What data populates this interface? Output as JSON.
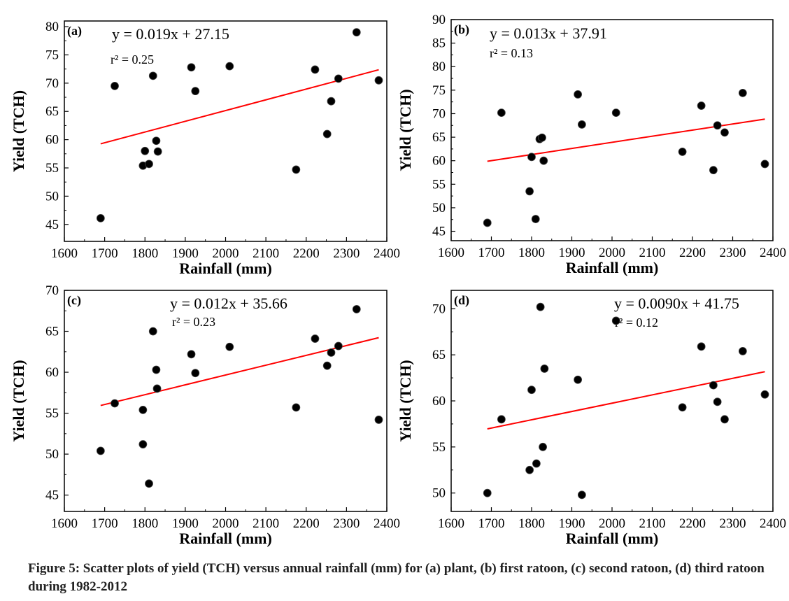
{
  "caption": "Figure 5: Scatter plots of yield (TCH) versus annual rainfall (mm) for (a) plant, (b) first ratoon, (c) second ratoon, (d) third ratoon during 1982-2012",
  "chart_data": [
    {
      "type": "scatter",
      "panel_label": "(a)",
      "equation": "y = 0.019x + 27.15",
      "r2_label": "r² = 0.25",
      "xlabel": "Rainfall (mm)",
      "ylabel": "Yield (TCH)",
      "xlim": [
        1600,
        2400
      ],
      "ylim": [
        42,
        81
      ],
      "xticks": [
        1600,
        1700,
        1800,
        1900,
        2000,
        2100,
        2200,
        2300,
        2400
      ],
      "yticks": [
        45,
        50,
        55,
        60,
        65,
        70,
        75,
        80
      ],
      "fit": {
        "slope": 0.019,
        "intercept": 27.15,
        "x_range": [
          1690,
          2380
        ],
        "color": "#ff0000"
      },
      "points": [
        [
          1690,
          46.1
        ],
        [
          1725,
          69.5
        ],
        [
          1795,
          55.4
        ],
        [
          1800,
          58.0
        ],
        [
          1810,
          55.7
        ],
        [
          1820,
          71.3
        ],
        [
          1828,
          59.8
        ],
        [
          1832,
          57.9
        ],
        [
          1915,
          72.8
        ],
        [
          1925,
          68.6
        ],
        [
          2010,
          73.0
        ],
        [
          2175,
          54.7
        ],
        [
          2222,
          72.4
        ],
        [
          2252,
          61.0
        ],
        [
          2262,
          66.8
        ],
        [
          2280,
          70.8
        ],
        [
          2325,
          79.0
        ],
        [
          2380,
          70.5
        ]
      ]
    },
    {
      "type": "scatter",
      "panel_label": "(b)",
      "equation": "y = 0.013x + 37.91",
      "r2_label": "r² = 0.13",
      "xlabel": "Rainfall (mm)",
      "ylabel": "Yield (TCH)",
      "xlim": [
        1600,
        2400
      ],
      "ylim": [
        43,
        90
      ],
      "xticks": [
        1600,
        1700,
        1800,
        1900,
        2000,
        2100,
        2200,
        2300,
        2400
      ],
      "yticks": [
        45,
        50,
        55,
        60,
        65,
        70,
        75,
        80,
        85,
        90
      ],
      "fit": {
        "slope": 0.013,
        "intercept": 37.91,
        "x_range": [
          1690,
          2380
        ],
        "color": "#ff0000"
      },
      "points": [
        [
          1690,
          46.8
        ],
        [
          1725,
          70.2
        ],
        [
          1795,
          53.5
        ],
        [
          1800,
          60.8
        ],
        [
          1810,
          47.6
        ],
        [
          1820,
          64.6
        ],
        [
          1826,
          64.9
        ],
        [
          1830,
          60.0
        ],
        [
          1915,
          74.1
        ],
        [
          1925,
          67.7
        ],
        [
          2010,
          70.2
        ],
        [
          2175,
          61.9
        ],
        [
          2222,
          71.7
        ],
        [
          2252,
          58.0
        ],
        [
          2262,
          67.5
        ],
        [
          2280,
          66.0
        ],
        [
          2325,
          74.4
        ],
        [
          2380,
          59.3
        ]
      ]
    },
    {
      "type": "scatter",
      "panel_label": "(c)",
      "equation": "y = 0.012x + 35.66",
      "r2_label": "r² = 0.23",
      "xlabel": "Rainfall (mm)",
      "ylabel": "Yield (TCH)",
      "xlim": [
        1600,
        2400
      ],
      "ylim": [
        43,
        70
      ],
      "xticks": [
        1600,
        1700,
        1800,
        1900,
        2000,
        2100,
        2200,
        2300,
        2400
      ],
      "yticks": [
        45,
        50,
        55,
        60,
        65,
        70
      ],
      "fit": {
        "slope": 0.012,
        "intercept": 35.66,
        "x_range": [
          1690,
          2380
        ],
        "color": "#ff0000"
      },
      "points": [
        [
          1690,
          50.4
        ],
        [
          1725,
          56.2
        ],
        [
          1795,
          55.4
        ],
        [
          1795,
          51.2
        ],
        [
          1810,
          46.4
        ],
        [
          1820,
          65.0
        ],
        [
          1828,
          60.3
        ],
        [
          1830,
          58.0
        ],
        [
          1915,
          62.2
        ],
        [
          1925,
          59.9
        ],
        [
          2010,
          63.1
        ],
        [
          2175,
          55.7
        ],
        [
          2222,
          64.1
        ],
        [
          2252,
          60.8
        ],
        [
          2262,
          62.4
        ],
        [
          2280,
          63.2
        ],
        [
          2325,
          67.7
        ],
        [
          2380,
          54.2
        ]
      ]
    },
    {
      "type": "scatter",
      "panel_label": "(d)",
      "equation": "y = 0.0090x + 41.75",
      "r2_label": "r² = 0.12",
      "xlabel": "Rainfall (mm)",
      "ylabel": "Yield (TCH)",
      "xlim": [
        1600,
        2400
      ],
      "ylim": [
        48,
        72
      ],
      "xticks": [
        1600,
        1700,
        1800,
        1900,
        2000,
        2100,
        2200,
        2300,
        2400
      ],
      "yticks": [
        50,
        55,
        60,
        65,
        70
      ],
      "fit": {
        "slope": 0.009,
        "intercept": 41.75,
        "x_range": [
          1690,
          2380
        ],
        "color": "#ff0000"
      },
      "points": [
        [
          1690,
          50.0
        ],
        [
          1725,
          58.0
        ],
        [
          1795,
          52.5
        ],
        [
          1800,
          61.2
        ],
        [
          1812,
          53.2
        ],
        [
          1822,
          70.2
        ],
        [
          1828,
          55.0
        ],
        [
          1832,
          63.5
        ],
        [
          1915,
          62.3
        ],
        [
          1925,
          49.8
        ],
        [
          2010,
          68.7
        ],
        [
          2175,
          59.3
        ],
        [
          2222,
          65.9
        ],
        [
          2252,
          61.7
        ],
        [
          2262,
          59.9
        ],
        [
          2280,
          58.0
        ],
        [
          2325,
          65.4
        ],
        [
          2380,
          60.7
        ]
      ]
    }
  ]
}
